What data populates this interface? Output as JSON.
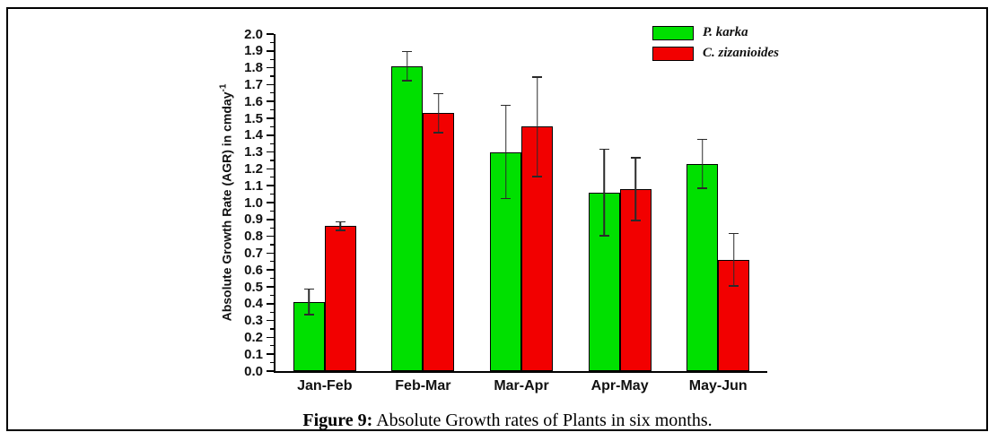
{
  "figure": {
    "caption_prefix": "Figure 9:",
    "caption_text": " Absolute Growth rates of Plants in six months."
  },
  "chart_data": {
    "type": "bar",
    "title": "",
    "categories": [
      "Jan-Feb",
      "Feb-Mar",
      "Mar-Apr",
      "Apr-May",
      "May-Jun"
    ],
    "series": [
      {
        "name": "P. karka",
        "color": "#00e000",
        "values": [
          0.41,
          1.81,
          1.3,
          1.06,
          1.23
        ],
        "errors": [
          0.08,
          0.09,
          0.28,
          0.26,
          0.15
        ]
      },
      {
        "name": "C. zizanioides",
        "color": "#f20000",
        "values": [
          0.86,
          1.53,
          1.45,
          1.08,
          0.66
        ],
        "errors": [
          0.03,
          0.12,
          0.3,
          0.19,
          0.16
        ]
      }
    ],
    "xlabel": "",
    "ylabel_main": "Absolute Growth Rate (AGR) in cmday",
    "ylabel_exponent": "-1",
    "ylim": [
      0.0,
      2.0
    ],
    "ytick_step": 0.1,
    "ytick_minor_step": 0.05,
    "grid": false,
    "legend_position": "top-right",
    "error_bars": true,
    "bar_border_color": "#000000",
    "axis_color": "#000000"
  }
}
